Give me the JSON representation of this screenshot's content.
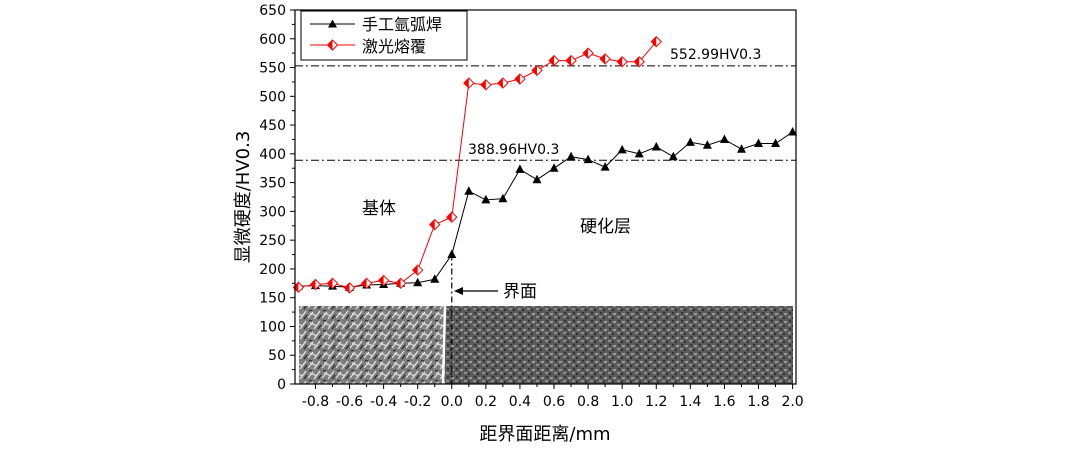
{
  "colors": {
    "series_black": "#000000",
    "series_red": "#ff0000",
    "micro_left": "#8a8a8a",
    "micro_right": "#6e6e6e"
  },
  "chart_data": {
    "type": "line",
    "xlabel": "距界面距离/mm",
    "ylabel": "显微硬度/HV0.3",
    "xlim": [
      -0.92,
      2.02
    ],
    "ylim": [
      0,
      650
    ],
    "x_ticks": [
      -0.8,
      -0.6,
      -0.4,
      -0.2,
      0.0,
      0.2,
      0.4,
      0.6,
      0.8,
      1.0,
      1.2,
      1.4,
      1.6,
      1.8,
      2.0
    ],
    "x_tick_labels": [
      "-0.8",
      "-0.6",
      "-0.4",
      "-0.2",
      "0.0",
      "0.2",
      "0.4",
      "0.6",
      "0.8",
      "1.0",
      "1.2",
      "1.4",
      "1.6",
      "1.8",
      "2.0"
    ],
    "y_ticks": [
      0,
      50,
      100,
      150,
      200,
      250,
      300,
      350,
      400,
      450,
      500,
      550,
      600,
      650
    ],
    "y_tick_labels": [
      "0",
      "50",
      "100",
      "150",
      "200",
      "250",
      "300",
      "350",
      "400",
      "450",
      "500",
      "550",
      "600",
      "650"
    ],
    "legend_position": "top-left",
    "series": [
      {
        "name": "手工氩弧焊",
        "color": "#000000",
        "marker": "triangle",
        "x": [
          -0.9,
          -0.8,
          -0.7,
          -0.6,
          -0.5,
          -0.4,
          -0.3,
          -0.2,
          -0.1,
          0.0,
          0.1,
          0.2,
          0.3,
          0.4,
          0.5,
          0.6,
          0.7,
          0.8,
          0.9,
          1.0,
          1.1,
          1.2,
          1.3,
          1.4,
          1.5,
          1.6,
          1.7,
          1.8,
          1.9,
          2.0
        ],
        "values": [
          170,
          171,
          170,
          168,
          172,
          173,
          175,
          176,
          182,
          225,
          335,
          320,
          322,
          373,
          355,
          375,
          395,
          390,
          377,
          407,
          400,
          412,
          395,
          420,
          415,
          425,
          408,
          418,
          418,
          438
        ]
      },
      {
        "name": "激光熔覆",
        "color": "#ff0000",
        "marker": "diamond",
        "x": [
          -0.9,
          -0.8,
          -0.7,
          -0.6,
          -0.5,
          -0.4,
          -0.3,
          -0.2,
          -0.1,
          0.0,
          0.1,
          0.2,
          0.3,
          0.4,
          0.5,
          0.6,
          0.7,
          0.8,
          0.9,
          1.0,
          1.1,
          1.2
        ],
        "values": [
          168,
          173,
          175,
          167,
          175,
          180,
          175,
          198,
          277,
          290,
          523,
          520,
          523,
          530,
          545,
          562,
          562,
          575,
          565,
          560,
          560,
          595
        ]
      }
    ],
    "reference_lines": [
      {
        "value": 552.99,
        "label": "552.99HV0.3"
      },
      {
        "value": 388.96,
        "label": "388.96HV0.3"
      }
    ],
    "annotations": {
      "base": "基体",
      "hardened": "硬化层",
      "interface": "界面"
    }
  }
}
